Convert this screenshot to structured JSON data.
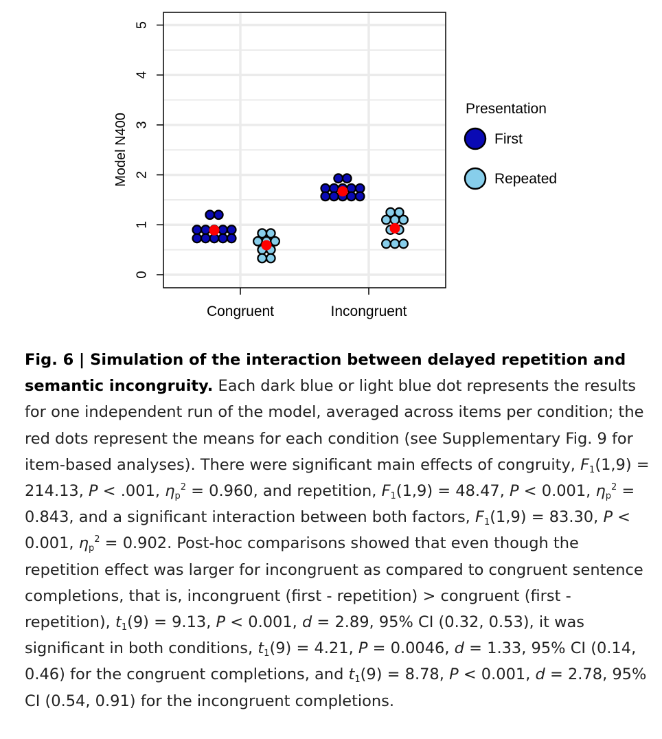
{
  "chart_data": {
    "type": "scatter",
    "ylabel": "Model N400",
    "xlabel": "",
    "ylim": [
      -0.25,
      5.25
    ],
    "yticks": [
      "0",
      "1",
      "2",
      "3",
      "4",
      "5"
    ],
    "categories": [
      "Congruent",
      "Incongruent"
    ],
    "grid": true,
    "legend": {
      "title": "Presentation",
      "position": "right",
      "entries": [
        "First",
        "Repeated"
      ]
    },
    "colors": {
      "First": "#0a0ab4",
      "Repeated": "#87ceeb",
      "mean": "#ff0000"
    },
    "series": [
      {
        "name": "First",
        "category": "Congruent",
        "values": [
          1.2,
          1.2,
          0.9,
          0.9,
          0.9,
          0.9,
          0.9,
          0.73,
          0.73,
          0.73,
          0.73,
          0.73
        ],
        "mean": 0.89
      },
      {
        "name": "Repeated",
        "category": "Congruent",
        "values": [
          0.83,
          0.83,
          0.67,
          0.67,
          0.67,
          0.5,
          0.5,
          0.33,
          0.33
        ],
        "mean": 0.59
      },
      {
        "name": "First",
        "category": "Incongruent",
        "values": [
          1.93,
          1.93,
          1.73,
          1.73,
          1.73,
          1.73,
          1.73,
          1.57,
          1.57,
          1.57,
          1.57,
          1.57
        ],
        "mean": 1.67
      },
      {
        "name": "Repeated",
        "category": "Incongruent",
        "values": [
          1.25,
          1.25,
          1.1,
          1.1,
          1.1,
          0.9,
          0.9,
          0.62,
          0.62,
          0.62
        ],
        "mean": 0.93
      }
    ]
  },
  "caption": {
    "title": "Fig. 6 | Simulation of the interaction between delayed repetition and semantic incongruity.",
    "p1": " Each dark blue or light blue dot represents the results for one independent run of the model, averaged across items per condition; the red dots represent the means for each condition (see Supplementary Fig. 9 for item-based analyses). There were significant main effects of congruity, ",
    "s1": "(1,9) = 214.13, ",
    "s2": " < .001, ",
    "s3": " = 0.960, and repetition, ",
    "s4": "(1,9) = 48.47, ",
    "s5": " < 0.001, ",
    "s6": " = 0.843, and a significant interaction between both factors, ",
    "s7": "(1,9) = 83.30, ",
    "s8": " < 0.001, ",
    "s9": " = 0.902. Post-hoc comparisons showed that even though the repetition effect was larger for incongruent as compared to congruent sentence completions, that is, incongruent (first - repetition) > congruent (first - repetition), ",
    "s10": "(9) = 9.13, ",
    "s11": " < 0.001, ",
    "s12": " = 2.89, 95% CI (0.32, 0.53), it was significant in both conditions, ",
    "s13": "(9) = 4.21, ",
    "s14": " = 0.0046, ",
    "s15": " = 1.33, 95% CI (0.14, 0.46) for the congruent completions, and ",
    "s16": "(9) = 8.78, ",
    "s17": " < 0.001, ",
    "s18": " = 2.78, 95% CI (0.54, 0.91) for the incongruent completions."
  }
}
